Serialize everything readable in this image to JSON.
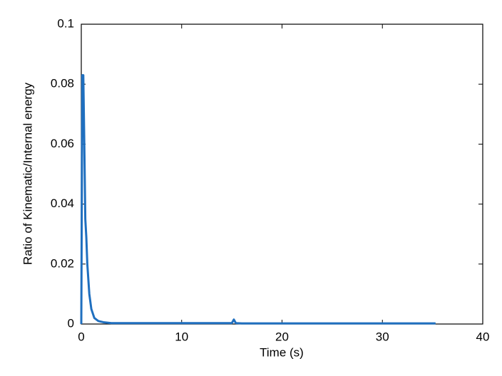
{
  "chart_data": {
    "type": "line",
    "x_label": "Time (s)",
    "y_label": "Ratio of Kinematic/Internal energy",
    "xlim": [
      0,
      40
    ],
    "xticks": [
      0,
      10,
      20,
      30,
      40
    ],
    "ylim": [
      0,
      0.1
    ],
    "yticks": [
      0,
      0.02,
      0.04,
      0.06,
      0.08,
      0.1
    ],
    "x": [
      0,
      0.1,
      0.2,
      0.3,
      0.4,
      0.5,
      0.6,
      0.8,
      1.0,
      1.3,
      1.7,
      2.2,
      3,
      5,
      10,
      15,
      15.2,
      15.4,
      16,
      20,
      25,
      30,
      35.3
    ],
    "series": [
      {
        "color": "#1f6fbf",
        "values": [
          0,
          0.083,
          0.083,
          0.06,
          0.035,
          0.029,
          0.02,
          0.01,
          0.005,
          0.002,
          0.001,
          0.0006,
          0.0003,
          0.0003,
          0.0003,
          0.0003,
          0.0015,
          0.0003,
          0.0002,
          0.0002,
          0.0002,
          0.0002,
          0.0002
        ]
      }
    ]
  }
}
